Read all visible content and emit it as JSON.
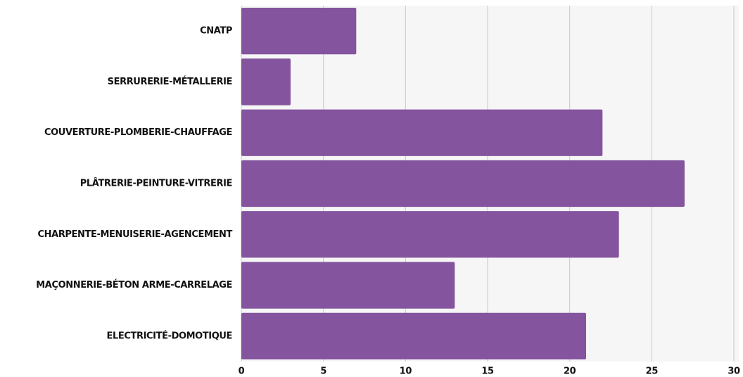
{
  "chart_data": {
    "type": "bar",
    "orientation": "horizontal",
    "categories": [
      "CNATP",
      "SERRURERIE-MÉTALLERIE",
      "COUVERTURE-PLOMBERIE-CHAUFFAGE",
      "PLÂTRERIE-PEINTURE-VITRERIE",
      "CHARPENTE-MENUISERIE-AGENCEMENT",
      "MAÇONNERIE-BÉTON ARME-CARRELAGE",
      "ELECTRICITÉ-DOMOTIQUE"
    ],
    "values": [
      7,
      3,
      22,
      27,
      23,
      13,
      21
    ],
    "color": "#84559e",
    "xlim": [
      0,
      30
    ],
    "xticks": [
      0,
      5,
      10,
      15,
      20,
      25,
      30
    ],
    "grid": true
  }
}
